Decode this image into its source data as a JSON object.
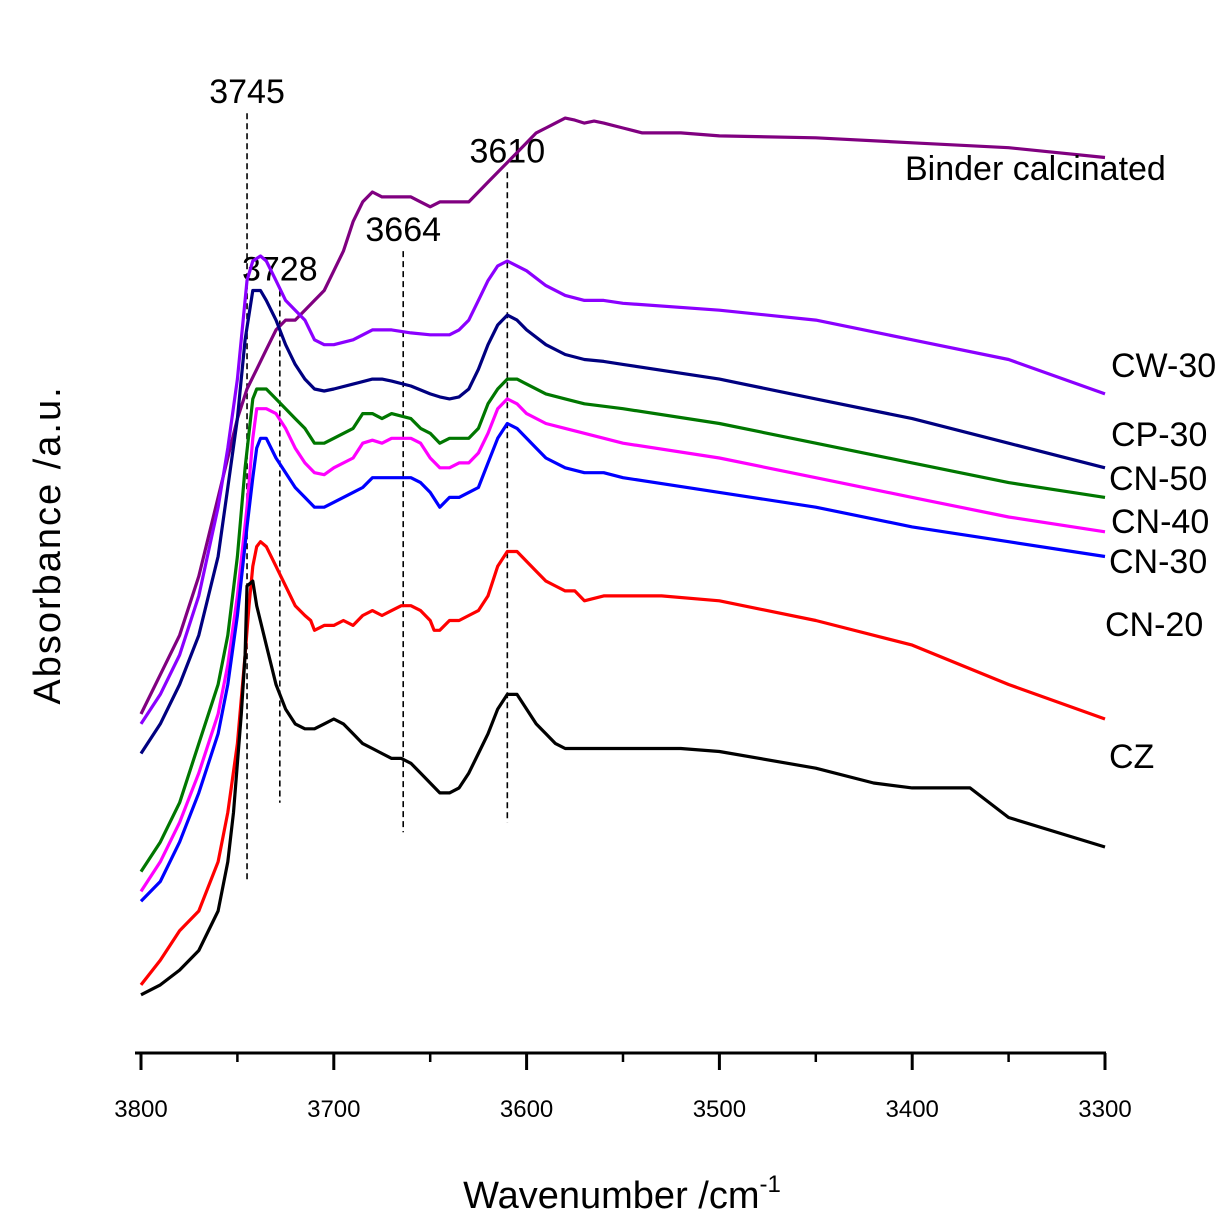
{
  "chart_data": {
    "type": "line",
    "title": "",
    "xlabel": "Wavenumber /cm",
    "xlabel_sup": "-1",
    "ylabel": "Absorbance /a.u.",
    "xlim": [
      3800,
      3300
    ],
    "x_reversed": true,
    "xticks": [
      "3800",
      "3700",
      "3600",
      "3500",
      "3400",
      "3300"
    ],
    "grid": false,
    "legend": "inline labels at right end of curves",
    "annotations": [
      {
        "label": "3745",
        "x": 3745,
        "top": 88,
        "bottom": 10
      },
      {
        "label": "3728",
        "x": 3728,
        "top": 70,
        "bottom": 18
      },
      {
        "label": "3664",
        "x": 3664,
        "top": 74,
        "bottom": 15
      },
      {
        "label": "3610",
        "x": 3610,
        "top": 82,
        "bottom": 16
      }
    ],
    "series": [
      {
        "name": "Binder calcinated",
        "color": "#800080",
        "x": [
          3800,
          3790,
          3780,
          3770,
          3760,
          3750,
          3745,
          3740,
          3735,
          3730,
          3725,
          3720,
          3715,
          3710,
          3705,
          3700,
          3695,
          3690,
          3685,
          3680,
          3675,
          3670,
          3665,
          3660,
          3655,
          3650,
          3645,
          3640,
          3635,
          3630,
          3625,
          3620,
          3615,
          3610,
          3605,
          3600,
          3595,
          3590,
          3585,
          3580,
          3575,
          3570,
          3565,
          3560,
          3550,
          3540,
          3520,
          3500,
          3450,
          3400,
          3350,
          3300
        ],
        "y": [
          27,
          31,
          35,
          41,
          49,
          57,
          60,
          62,
          64,
          66,
          67,
          67,
          68,
          69,
          70,
          72,
          74,
          77,
          79,
          80,
          79.5,
          79.5,
          79.5,
          79.5,
          79,
          78.5,
          79,
          79,
          79,
          79,
          80,
          81,
          82,
          83,
          84,
          85,
          86,
          86.5,
          87,
          87.5,
          87.3,
          87,
          87.2,
          87,
          86.5,
          86,
          86,
          85.7,
          85.5,
          85,
          84.5,
          83.5
        ]
      },
      {
        "name": "CW-30",
        "color": "#8B00FF",
        "x": [
          3800,
          3790,
          3780,
          3770,
          3760,
          3755,
          3750,
          3745,
          3742,
          3738,
          3735,
          3730,
          3725,
          3720,
          3715,
          3710,
          3705,
          3700,
          3690,
          3680,
          3675,
          3670,
          3660,
          3650,
          3645,
          3640,
          3635,
          3630,
          3625,
          3620,
          3615,
          3610,
          3605,
          3600,
          3590,
          3580,
          3570,
          3560,
          3550,
          3500,
          3450,
          3400,
          3350,
          3300
        ],
        "y": [
          26,
          29,
          33,
          39,
          48,
          54,
          61,
          71,
          73,
          73.5,
          73,
          71,
          69,
          68,
          67,
          65,
          64.5,
          64.5,
          65,
          66,
          66,
          66,
          65.7,
          65.5,
          65.5,
          65.5,
          66,
          67,
          69,
          71,
          72.5,
          73,
          72.5,
          72,
          70.5,
          69.5,
          69,
          69,
          68.7,
          68,
          67,
          65,
          63,
          59.5
        ]
      },
      {
        "name": "CP-30",
        "color": "#000080",
        "x": [
          3800,
          3790,
          3780,
          3770,
          3760,
          3755,
          3750,
          3746,
          3742,
          3738,
          3735,
          3730,
          3725,
          3720,
          3715,
          3710,
          3705,
          3700,
          3690,
          3680,
          3675,
          3670,
          3660,
          3650,
          3645,
          3640,
          3635,
          3630,
          3625,
          3620,
          3615,
          3610,
          3605,
          3600,
          3590,
          3580,
          3570,
          3560,
          3550,
          3500,
          3450,
          3400,
          3350,
          3300
        ],
        "y": [
          23,
          26,
          30,
          35,
          43,
          50,
          57,
          65,
          70,
          70,
          69,
          67,
          64.5,
          62.5,
          61,
          60,
          59.8,
          60,
          60.5,
          61,
          61,
          60.8,
          60.3,
          59.5,
          59.2,
          59,
          59.2,
          60,
          62,
          64.5,
          66.5,
          67.5,
          67,
          66,
          64.5,
          63.5,
          63,
          62.8,
          62.5,
          61,
          59,
          57,
          54.5,
          52
        ]
      },
      {
        "name": "CN-50",
        "color": "#007700",
        "x": [
          3800,
          3790,
          3780,
          3770,
          3760,
          3755,
          3750,
          3746,
          3742,
          3740,
          3735,
          3730,
          3725,
          3720,
          3715,
          3710,
          3705,
          3700,
          3690,
          3685,
          3680,
          3675,
          3670,
          3660,
          3655,
          3650,
          3645,
          3640,
          3635,
          3630,
          3625,
          3620,
          3615,
          3610,
          3605,
          3600,
          3590,
          3580,
          3570,
          3550,
          3500,
          3450,
          3400,
          3350,
          3300
        ],
        "y": [
          11,
          14,
          18,
          24,
          30,
          35,
          43,
          52,
          59,
          60,
          60,
          59,
          58,
          57,
          56,
          54.5,
          54.5,
          55,
          56,
          57.5,
          57.5,
          57,
          57.5,
          57,
          56,
          55.5,
          54.5,
          55,
          55,
          55,
          56,
          58.5,
          60,
          61,
          61,
          60.5,
          59.5,
          59,
          58.5,
          58,
          56.5,
          54.5,
          52.5,
          50.5,
          49
        ]
      },
      {
        "name": "CN-40",
        "color": "#FF00FF",
        "x": [
          3800,
          3790,
          3780,
          3770,
          3760,
          3755,
          3750,
          3745,
          3742,
          3740,
          3735,
          3730,
          3725,
          3720,
          3715,
          3710,
          3705,
          3700,
          3690,
          3685,
          3680,
          3675,
          3670,
          3660,
          3655,
          3650,
          3645,
          3640,
          3635,
          3630,
          3625,
          3620,
          3615,
          3610,
          3605,
          3600,
          3590,
          3580,
          3570,
          3550,
          3500,
          3450,
          3400,
          3350,
          3300
        ],
        "y": [
          9,
          12,
          16,
          21,
          27,
          32,
          39,
          48,
          55,
          58,
          58,
          57.5,
          56,
          54,
          52.5,
          51.5,
          51.3,
          52,
          53,
          54.5,
          54.8,
          54.5,
          55,
          55,
          54.5,
          53,
          52,
          52,
          52.5,
          52.5,
          53.5,
          55.5,
          58,
          59,
          58.5,
          57.5,
          56.5,
          56,
          55.5,
          54.5,
          53,
          51,
          49,
          47,
          45.5
        ]
      },
      {
        "name": "CN-30",
        "color": "#0000FF",
        "x": [
          3800,
          3790,
          3780,
          3770,
          3760,
          3755,
          3750,
          3745,
          3742,
          3740,
          3738,
          3735,
          3730,
          3725,
          3720,
          3715,
          3710,
          3705,
          3700,
          3690,
          3685,
          3680,
          3675,
          3670,
          3665,
          3660,
          3655,
          3650,
          3645,
          3640,
          3635,
          3630,
          3625,
          3620,
          3615,
          3610,
          3605,
          3600,
          3595,
          3590,
          3580,
          3570,
          3560,
          3550,
          3500,
          3450,
          3400,
          3350,
          3300
        ],
        "y": [
          8,
          10,
          14,
          19,
          25,
          30,
          37,
          46,
          51,
          54,
          55,
          55,
          53,
          51.5,
          50,
          49,
          48,
          48,
          48.5,
          49.5,
          50,
          51,
          51,
          51,
          51,
          51,
          50.5,
          49.5,
          48,
          49,
          49,
          49.5,
          50,
          52.5,
          55,
          56.5,
          56,
          55,
          54,
          53,
          52,
          51.5,
          51.5,
          51,
          49.5,
          48,
          46,
          44.5,
          43
        ]
      },
      {
        "name": "CN-20",
        "color": "#FF0000",
        "x": [
          3800,
          3790,
          3780,
          3770,
          3760,
          3755,
          3750,
          3746,
          3744,
          3742,
          3740,
          3738,
          3735,
          3730,
          3725,
          3720,
          3715,
          3712,
          3710,
          3705,
          3700,
          3695,
          3690,
          3685,
          3680,
          3675,
          3670,
          3665,
          3660,
          3655,
          3650,
          3648,
          3645,
          3640,
          3635,
          3630,
          3625,
          3620,
          3615,
          3610,
          3605,
          3600,
          3595,
          3590,
          3585,
          3580,
          3575,
          3570,
          3560,
          3550,
          3530,
          3500,
          3450,
          3400,
          3350,
          3300
        ],
        "y": [
          -0.5,
          2,
          5,
          7,
          12,
          17,
          24,
          33,
          38,
          42,
          44,
          44.5,
          44,
          42,
          40,
          38,
          37,
          36.5,
          35.5,
          36,
          36,
          36.5,
          36,
          37,
          37.5,
          37,
          37.5,
          38,
          38,
          37.5,
          36.5,
          35.5,
          35.5,
          36.5,
          36.5,
          37,
          37.5,
          39,
          42,
          43.5,
          43.5,
          42.5,
          41.5,
          40.5,
          40,
          39.5,
          39.5,
          38.5,
          39,
          39,
          39,
          38.5,
          36.5,
          34,
          30,
          26.5
        ]
      },
      {
        "name": "CZ",
        "color": "#000000",
        "x": [
          3800,
          3790,
          3780,
          3770,
          3760,
          3755,
          3752,
          3750,
          3748,
          3746,
          3745,
          3742,
          3740,
          3735,
          3730,
          3725,
          3720,
          3715,
          3710,
          3705,
          3700,
          3695,
          3690,
          3685,
          3680,
          3675,
          3670,
          3665,
          3660,
          3655,
          3650,
          3645,
          3640,
          3635,
          3630,
          3625,
          3620,
          3615,
          3610,
          3605,
          3600,
          3595,
          3590,
          3585,
          3580,
          3570,
          3560,
          3550,
          3520,
          3500,
          3450,
          3420,
          3400,
          3380,
          3370,
          3350,
          3300
        ],
        "y": [
          -1.5,
          -0.5,
          1,
          3,
          7,
          12,
          17,
          22,
          27,
          33,
          40,
          40.5,
          38,
          34,
          30,
          27.5,
          26,
          25.5,
          25.5,
          26,
          26.5,
          26,
          25,
          24,
          23.5,
          23,
          22.5,
          22.5,
          22,
          21,
          20,
          19,
          19,
          19.5,
          21,
          23,
          25,
          27.5,
          29,
          29,
          27.5,
          26,
          25,
          24,
          23.5,
          23.5,
          23.5,
          23.5,
          23.5,
          23.2,
          21.5,
          20,
          19.5,
          19.5,
          19.5,
          16.5,
          13.5
        ]
      }
    ]
  }
}
